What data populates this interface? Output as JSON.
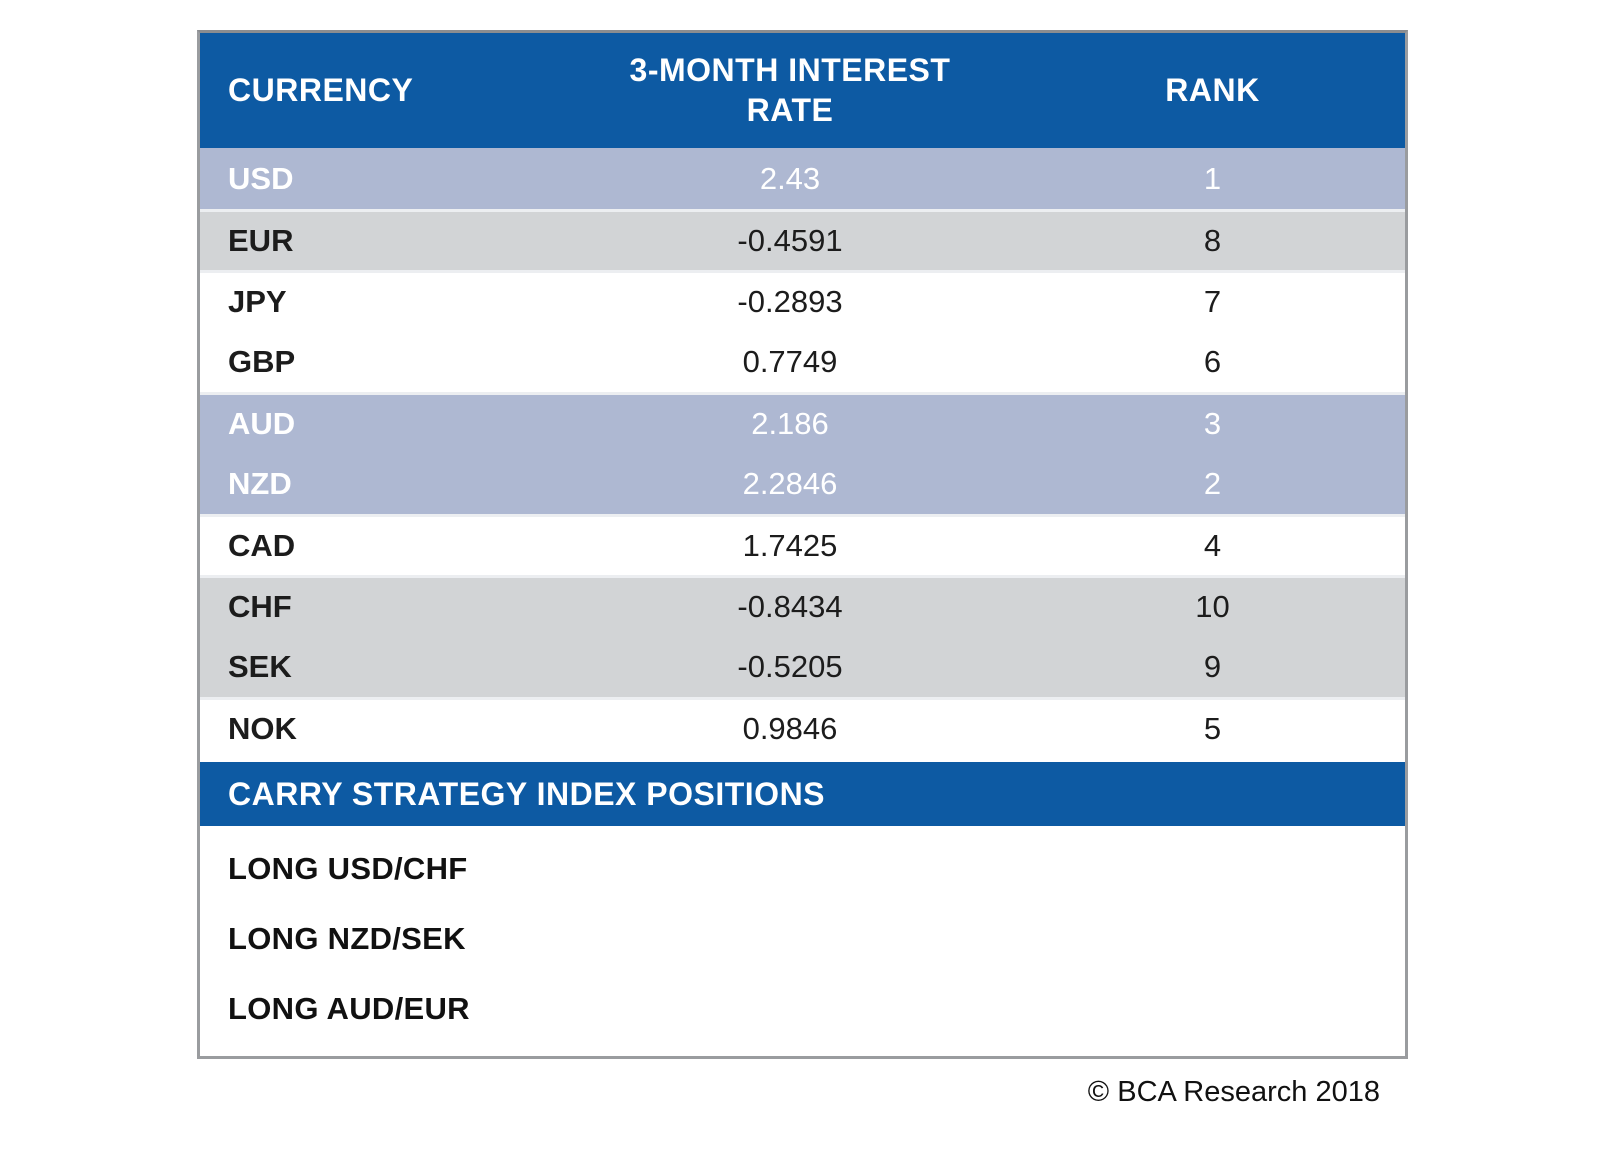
{
  "chart_data": {
    "type": "table",
    "title": "",
    "columns": [
      "CURRENCY",
      "3-MONTH INTEREST RATE",
      "RANK"
    ],
    "rows": [
      {
        "currency": "USD",
        "rate": "2.43",
        "rank": "1",
        "highlighted": true
      },
      {
        "currency": "EUR",
        "rate": "-0.4591",
        "rank": "8",
        "highlighted": false
      },
      {
        "currency": "JPY",
        "rate": "-0.2893",
        "rank": "7",
        "highlighted": false
      },
      {
        "currency": "GBP",
        "rate": "0.7749",
        "rank": "6",
        "highlighted": false
      },
      {
        "currency": "AUD",
        "rate": "2.186",
        "rank": "3",
        "highlighted": true
      },
      {
        "currency": "NZD",
        "rate": "2.2846",
        "rank": "2",
        "highlighted": true
      },
      {
        "currency": "CAD",
        "rate": "1.7425",
        "rank": "4",
        "highlighted": false
      },
      {
        "currency": "CHF",
        "rate": "-0.8434",
        "rank": "10",
        "highlighted": false
      },
      {
        "currency": "SEK",
        "rate": "-0.5205",
        "rank": "9",
        "highlighted": false
      },
      {
        "currency": "NOK",
        "rate": "0.9846",
        "rank": "5",
        "highlighted": false
      }
    ]
  },
  "table": {
    "columns": [
      "CURRENCY",
      "3-MONTH INTEREST RATE",
      "RANK"
    ],
    "rows": [
      {
        "currency": "USD",
        "rate": "2.43",
        "rank": "1"
      },
      {
        "currency": "EUR",
        "rate": "-0.4591",
        "rank": "8"
      },
      {
        "currency": "JPY",
        "rate": "-0.2893",
        "rank": "7"
      },
      {
        "currency": "GBP",
        "rate": "0.7749",
        "rank": "6"
      },
      {
        "currency": "AUD",
        "rate": "2.186",
        "rank": "3"
      },
      {
        "currency": "NZD",
        "rate": "2.2846",
        "rank": "2"
      },
      {
        "currency": "CAD",
        "rate": "1.7425",
        "rank": "4"
      },
      {
        "currency": "CHF",
        "rate": "-0.8434",
        "rank": "10"
      },
      {
        "currency": "SEK",
        "rate": "-0.5205",
        "rank": "9"
      },
      {
        "currency": "NOK",
        "rate": "0.9846",
        "rank": "5"
      }
    ]
  },
  "positions": {
    "header": "CARRY STRATEGY INDEX POSITIONS",
    "items": [
      "LONG USD/CHF",
      "LONG NZD/SEK",
      "LONG AUD/EUR"
    ]
  },
  "footer": {
    "credit": "© BCA Research 2018"
  },
  "colors": {
    "header_blue": "#0d5aa3",
    "highlight_row_blue": "#aeb8d2",
    "alt_row_gray": "#d2d4d6",
    "border_gray": "#9a9c9f"
  }
}
